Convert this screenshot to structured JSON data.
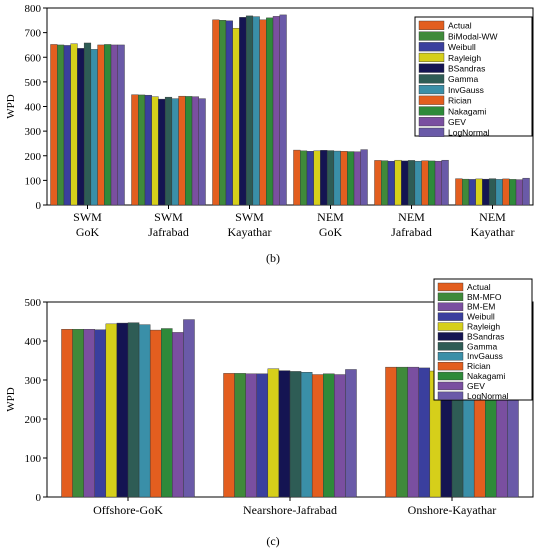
{
  "colors": {
    "Actual": "#e35e1f",
    "BiModal-WW": "#3f8a3a",
    "BM-MFO": "#3f8a3a",
    "BM-EM": "#7a4fa0",
    "Weibull": "#3a3f9e",
    "Rayleigh": "#d6cf1a",
    "BSandras": "#141452",
    "Gamma": "#2e5c55",
    "InvGauss": "#3a8fa8",
    "Rician": "#e35e1f",
    "Nakagami": "#2e8a3a",
    "GEV": "#7a4fa0",
    "LogNormal": "#6a5aa8"
  },
  "chart_data": [
    {
      "type": "bar",
      "ylabel": "WPD",
      "caption": "(b)",
      "ylim": [
        0,
        800
      ],
      "yticks": [
        0,
        100,
        200,
        300,
        400,
        500,
        600,
        700,
        800
      ],
      "legend_position": "top-right",
      "categories": [
        [
          "SWM",
          "GoK"
        ],
        [
          "SWM",
          "Jafrabad"
        ],
        [
          "SWM",
          "Kayathar"
        ],
        [
          "NEM",
          "GoK"
        ],
        [
          "NEM",
          "Jafrabad"
        ],
        [
          "NEM",
          "Kayathar"
        ]
      ],
      "series": [
        {
          "name": "Actual",
          "values": [
            652,
            448,
            752,
            223,
            181,
            107
          ]
        },
        {
          "name": "BiModal-WW",
          "values": [
            650,
            447,
            750,
            220,
            180,
            105
          ]
        },
        {
          "name": "Weibull",
          "values": [
            648,
            446,
            748,
            218,
            178,
            104
          ]
        },
        {
          "name": "Rayleigh",
          "values": [
            655,
            440,
            718,
            220,
            182,
            106
          ]
        },
        {
          "name": "BSandras",
          "values": [
            636,
            430,
            762,
            222,
            179,
            105
          ]
        },
        {
          "name": "Gamma",
          "values": [
            658,
            438,
            768,
            221,
            181,
            107
          ]
        },
        {
          "name": "InvGauss",
          "values": [
            632,
            432,
            765,
            219,
            178,
            104
          ]
        },
        {
          "name": "Rician",
          "values": [
            650,
            442,
            752,
            218,
            180,
            106
          ]
        },
        {
          "name": "Nakagami",
          "values": [
            652,
            441,
            760,
            217,
            179,
            104
          ]
        },
        {
          "name": "GEV",
          "values": [
            650,
            440,
            766,
            216,
            178,
            103
          ]
        },
        {
          "name": "LogNormal",
          "values": [
            650,
            432,
            772,
            225,
            182,
            109
          ]
        }
      ]
    },
    {
      "type": "bar",
      "ylabel": "WPD",
      "caption": "(c)",
      "ylim": [
        0,
        500
      ],
      "yticks": [
        0,
        100,
        200,
        300,
        400,
        500
      ],
      "legend_position": "top-right",
      "categories": [
        [
          "Offshore-GoK"
        ],
        [
          "Nearshore-Jafrabad"
        ],
        [
          "Onshore-Kayathar"
        ]
      ],
      "series": [
        {
          "name": "Actual",
          "values": [
            430,
            317,
            333
          ]
        },
        {
          "name": "BM-MFO",
          "values": [
            430,
            317,
            333
          ]
        },
        {
          "name": "BM-EM",
          "values": [
            430,
            316,
            333
          ]
        },
        {
          "name": "Weibull",
          "values": [
            429,
            316,
            331
          ]
        },
        {
          "name": "Rayleigh",
          "values": [
            444,
            329,
            323
          ]
        },
        {
          "name": "BSandras",
          "values": [
            446,
            324,
            318
          ]
        },
        {
          "name": "Gamma",
          "values": [
            447,
            322,
            322
          ]
        },
        {
          "name": "InvGauss",
          "values": [
            442,
            320,
            314
          ]
        },
        {
          "name": "Rician",
          "values": [
            428,
            314,
            318
          ]
        },
        {
          "name": "Nakagami",
          "values": [
            432,
            316,
            324
          ]
        },
        {
          "name": "GEV",
          "values": [
            422,
            314,
            311
          ]
        },
        {
          "name": "LogNormal",
          "values": [
            455,
            327,
            318
          ]
        }
      ]
    }
  ]
}
